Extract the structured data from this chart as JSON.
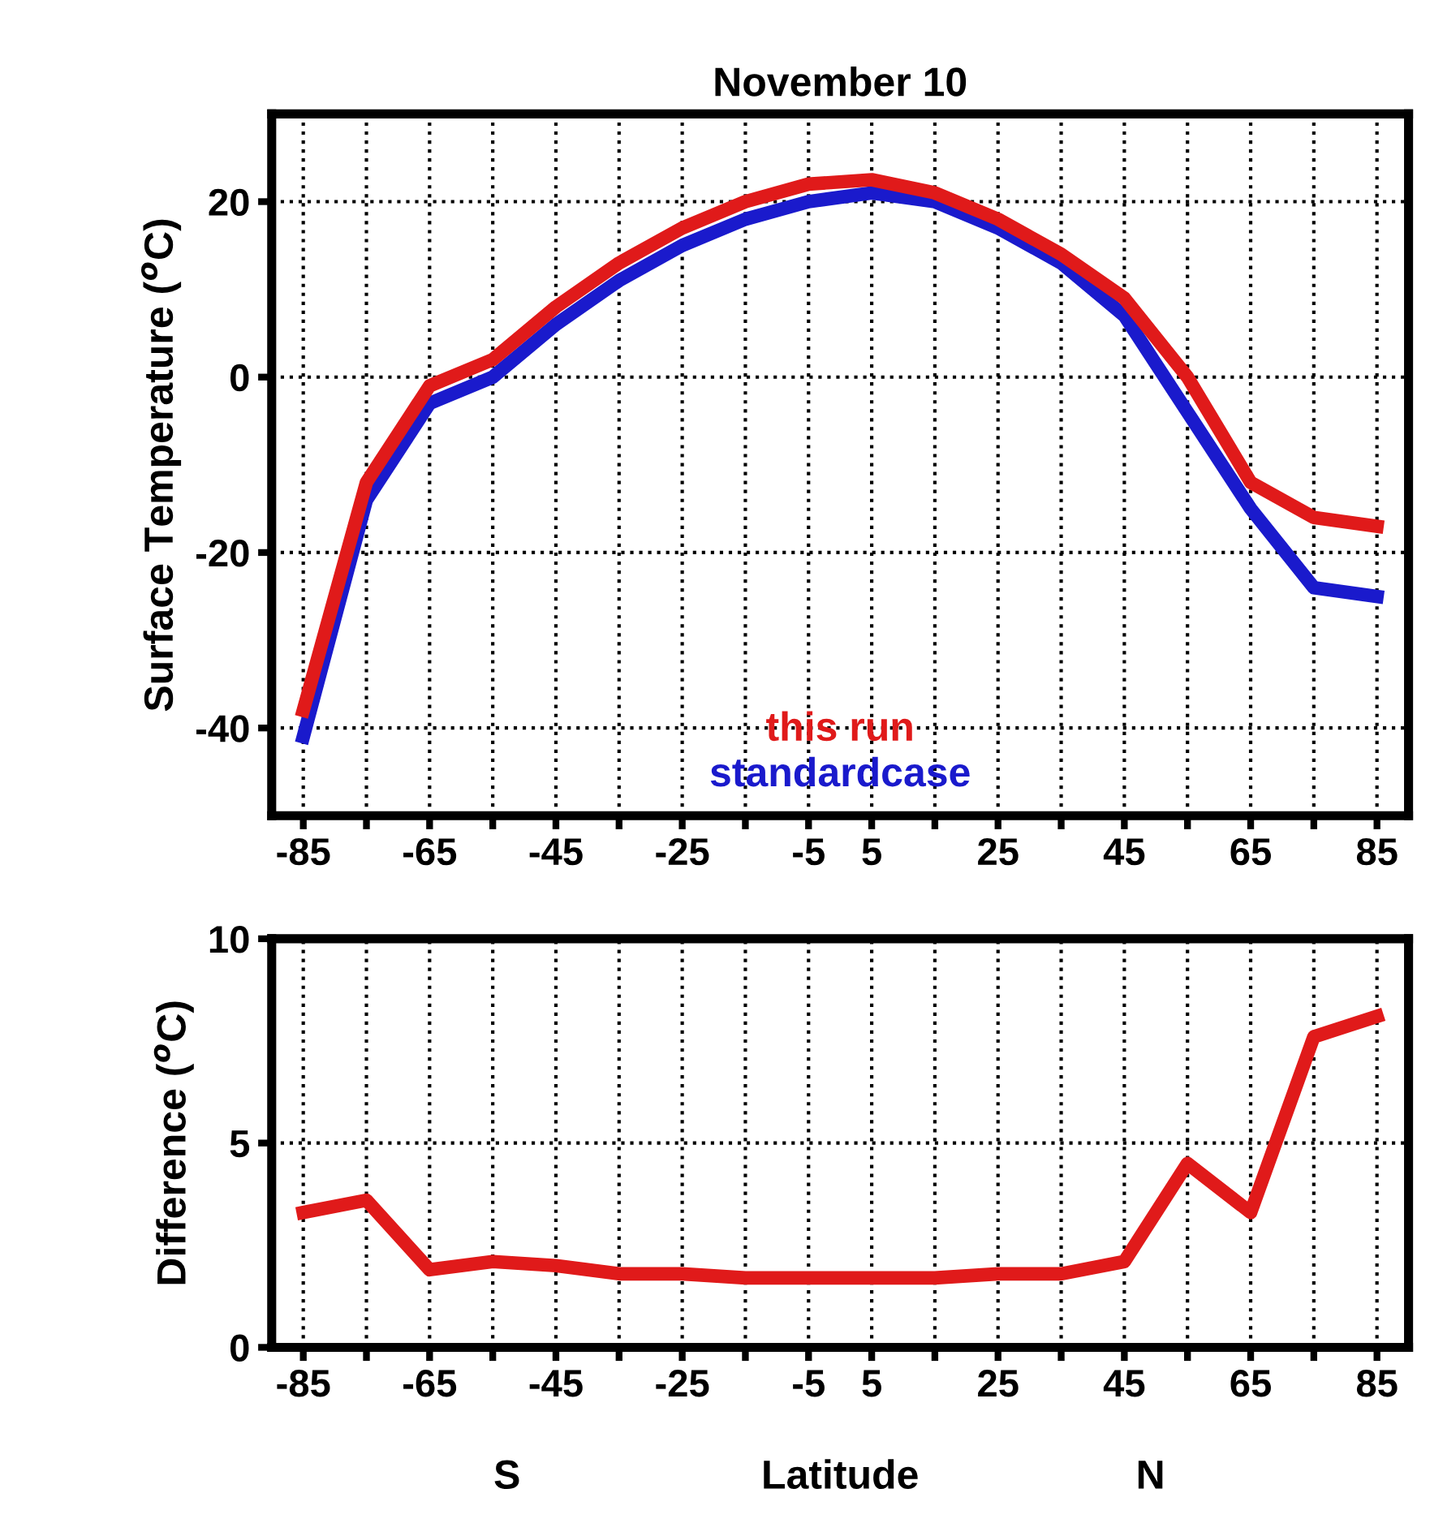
{
  "chart_data": [
    {
      "type": "line",
      "title": "November 10",
      "ylabel": "Surface Temperature ($^{o}$C)",
      "x": [
        -85,
        -75,
        -65,
        -55,
        -45,
        -35,
        -25,
        -15,
        -5,
        5,
        15,
        25,
        35,
        45,
        55,
        65,
        75,
        85
      ],
      "series": [
        {
          "name": "this run",
          "color": "#e01a1a",
          "values": [
            -38,
            -12,
            -1,
            2,
            8,
            13,
            17,
            20,
            22,
            22.5,
            21,
            18,
            14,
            9,
            0,
            -12,
            -16,
            -17
          ]
        },
        {
          "name": "standardcase",
          "color": "#1a1acc",
          "values": [
            -41,
            -14,
            -3,
            0,
            6,
            11,
            15,
            18,
            20,
            21,
            20,
            17,
            13,
            7,
            -4,
            -15,
            -24,
            -25
          ]
        }
      ],
      "xlim": [
        -90,
        90
      ],
      "ylim": [
        -50,
        30
      ],
      "xticks": [
        -85,
        {
          "value": -75,
          "label": null
        },
        -65,
        {
          "value": -55,
          "label": null
        },
        -45,
        {
          "value": -35,
          "label": null
        },
        -25,
        {
          "value": -15,
          "label": null
        },
        -5,
        5,
        {
          "value": 15,
          "label": null
        },
        25,
        {
          "value": 35,
          "label": null
        },
        45,
        {
          "value": 55,
          "label": null
        },
        65,
        {
          "value": 75,
          "label": null
        },
        85
      ],
      "yticks": [
        -40,
        -20,
        0,
        20
      ],
      "grid": true,
      "legend": "bottom",
      "line_style": "solid",
      "marker": "none"
    },
    {
      "type": "line",
      "ylabel": "Difference ($^{o}$C)",
      "xlabel": "Latitude",
      "annotations": [
        "S",
        "N"
      ],
      "x": [
        -85,
        -75,
        -65,
        -55,
        -45,
        -35,
        -25,
        -15,
        -5,
        5,
        15,
        25,
        35,
        45,
        55,
        65,
        75,
        85
      ],
      "series": [
        {
          "color": "#e01a1a",
          "values": [
            3.3,
            3.6,
            1.9,
            2.1,
            2.0,
            1.8,
            1.8,
            1.7,
            1.7,
            1.7,
            1.7,
            1.8,
            1.8,
            2.1,
            4.5,
            3.3,
            7.6,
            8.1
          ]
        }
      ],
      "xlim": [
        -90,
        90
      ],
      "ylim": [
        0,
        10
      ],
      "xticks": [
        -85,
        {
          "value": -75,
          "label": null
        },
        -65,
        {
          "value": -55,
          "label": null
        },
        -45,
        {
          "value": -35,
          "label": null
        },
        -25,
        {
          "value": -15,
          "label": null
        },
        -5,
        5,
        {
          "value": 15,
          "label": null
        },
        25,
        {
          "value": 35,
          "label": null
        },
        45,
        {
          "value": 55,
          "label": null
        },
        65,
        {
          "value": 75,
          "label": null
        },
        85
      ],
      "yticks": [
        0,
        5,
        10
      ],
      "grid": true,
      "line_style": "solid",
      "marker": "none"
    }
  ]
}
